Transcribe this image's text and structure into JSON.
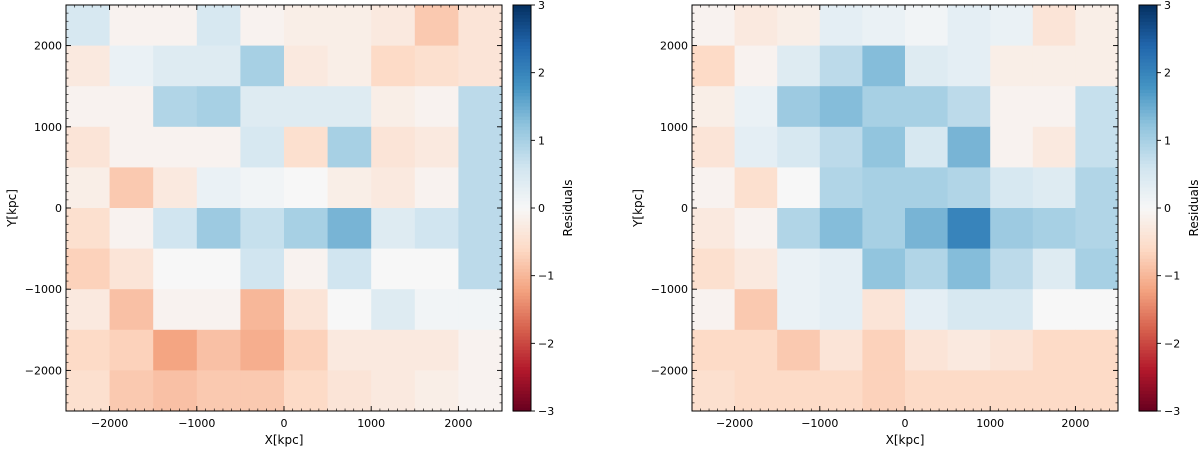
{
  "chart_data": [
    {
      "type": "heatmap",
      "xlabel": "X[kpc]",
      "ylabel": "Y[kpc]",
      "xlim": [
        -2500,
        2500
      ],
      "ylim": [
        -2500,
        2500
      ],
      "x_ticks": [
        -2000,
        -1000,
        0,
        1000,
        2000
      ],
      "y_ticks": [
        -2000,
        -1000,
        0,
        1000,
        2000
      ],
      "x_tick_labels": [
        "−2000",
        "−1000",
        "0",
        "1000",
        "2000"
      ],
      "y_tick_labels": [
        "−2000",
        "−1000",
        "0",
        "1000",
        "2000"
      ],
      "grid": false,
      "x_bin_edges": [
        -2500,
        -2000,
        -1500,
        -1000,
        -500,
        0,
        500,
        1000,
        1500,
        2000,
        2500
      ],
      "y_bin_edges": [
        2500,
        2000,
        1500,
        1000,
        500,
        0,
        -500,
        -1000,
        -1500,
        -2000,
        -2500
      ],
      "colorbar": {
        "label": "Residuals",
        "vmin": -3,
        "vmax": 3,
        "colormap": "RdBu",
        "ticks": [
          -3,
          -2,
          -1,
          0,
          1,
          2,
          3
        ],
        "tick_labels": [
          "−3",
          "−2",
          "−1",
          "0",
          "1",
          "2",
          "3"
        ]
      },
      "values": [
        [
          0.5,
          -0.1,
          -0.1,
          0.5,
          -0.1,
          -0.2,
          -0.2,
          -0.3,
          -0.8,
          -0.4
        ],
        [
          -0.3,
          0.2,
          0.4,
          0.4,
          1.0,
          -0.3,
          -0.2,
          -0.6,
          -0.5,
          -0.4
        ],
        [
          -0.1,
          -0.1,
          0.9,
          1.0,
          0.4,
          0.4,
          0.4,
          -0.2,
          -0.1,
          0.8
        ],
        [
          -0.4,
          -0.1,
          -0.1,
          -0.1,
          0.5,
          -0.5,
          1.0,
          -0.4,
          -0.3,
          0.8
        ],
        [
          -0.2,
          -0.8,
          -0.3,
          0.2,
          0.1,
          0.0,
          -0.2,
          -0.3,
          -0.1,
          0.8
        ],
        [
          -0.5,
          -0.1,
          0.6,
          1.1,
          0.7,
          1.0,
          1.4,
          0.4,
          0.6,
          0.8
        ],
        [
          -0.7,
          -0.4,
          0.0,
          0.0,
          0.6,
          -0.1,
          0.6,
          0.0,
          0.0,
          0.8
        ],
        [
          -0.3,
          -0.9,
          -0.1,
          -0.1,
          -1.0,
          -0.4,
          0.0,
          0.4,
          0.1,
          0.1
        ],
        [
          -0.6,
          -0.7,
          -1.2,
          -0.9,
          -1.1,
          -0.7,
          -0.3,
          -0.3,
          -0.3,
          -0.1
        ],
        [
          -0.5,
          -0.8,
          -0.9,
          -0.8,
          -0.8,
          -0.6,
          -0.4,
          -0.3,
          -0.2,
          -0.1
        ]
      ]
    },
    {
      "type": "heatmap",
      "xlabel": "X[kpc]",
      "ylabel": "Y[kpc]",
      "xlim": [
        -2500,
        2500
      ],
      "ylim": [
        -2500,
        2500
      ],
      "x_ticks": [
        -2000,
        -1000,
        0,
        1000,
        2000
      ],
      "y_ticks": [
        -2000,
        -1000,
        0,
        1000,
        2000
      ],
      "x_tick_labels": [
        "−2000",
        "−1000",
        "0",
        "1000",
        "2000"
      ],
      "y_tick_labels": [
        "−2000",
        "−1000",
        "0",
        "1000",
        "2000"
      ],
      "grid": false,
      "x_bin_edges": [
        -2500,
        -2000,
        -1500,
        -1000,
        -500,
        0,
        500,
        1000,
        1500,
        2000,
        2500
      ],
      "y_bin_edges": [
        2500,
        2000,
        1500,
        1000,
        500,
        0,
        -500,
        -1000,
        -1500,
        -2000,
        -2500
      ],
      "colorbar": {
        "label": "Residuals",
        "vmin": -3,
        "vmax": 3,
        "colormap": "RdBu",
        "ticks": [
          -3,
          -2,
          -1,
          0,
          1,
          2,
          3
        ],
        "tick_labels": [
          "−3",
          "−2",
          "−1",
          "0",
          "1",
          "2",
          "3"
        ]
      },
      "values": [
        [
          -0.1,
          -0.3,
          -0.2,
          0.3,
          0.2,
          0.1,
          0.3,
          0.2,
          -0.4,
          -0.2
        ],
        [
          -0.6,
          -0.1,
          0.4,
          0.8,
          1.3,
          0.4,
          0.3,
          -0.2,
          -0.2,
          -0.2
        ],
        [
          -0.2,
          0.2,
          1.1,
          1.3,
          1.0,
          1.0,
          0.8,
          -0.1,
          -0.1,
          0.7
        ],
        [
          -0.4,
          0.3,
          0.5,
          0.8,
          1.2,
          0.5,
          1.4,
          -0.1,
          -0.3,
          0.7
        ],
        [
          -0.1,
          -0.5,
          0.0,
          0.9,
          1.0,
          1.0,
          0.9,
          0.5,
          0.4,
          0.9
        ],
        [
          -0.3,
          -0.1,
          0.9,
          1.3,
          1.0,
          1.4,
          2.0,
          1.1,
          1.0,
          0.9
        ],
        [
          -0.5,
          -0.3,
          0.2,
          0.3,
          1.2,
          0.9,
          1.3,
          0.8,
          0.4,
          1.0
        ],
        [
          -0.1,
          -0.8,
          0.2,
          0.3,
          -0.4,
          0.3,
          0.5,
          0.5,
          0.0,
          0.0
        ],
        [
          -0.6,
          -0.6,
          -0.8,
          -0.4,
          -0.7,
          -0.4,
          -0.3,
          -0.4,
          -0.6,
          -0.6
        ],
        [
          -0.5,
          -0.6,
          -0.6,
          -0.6,
          -0.7,
          -0.6,
          -0.6,
          -0.6,
          -0.6,
          -0.6
        ]
      ]
    }
  ]
}
